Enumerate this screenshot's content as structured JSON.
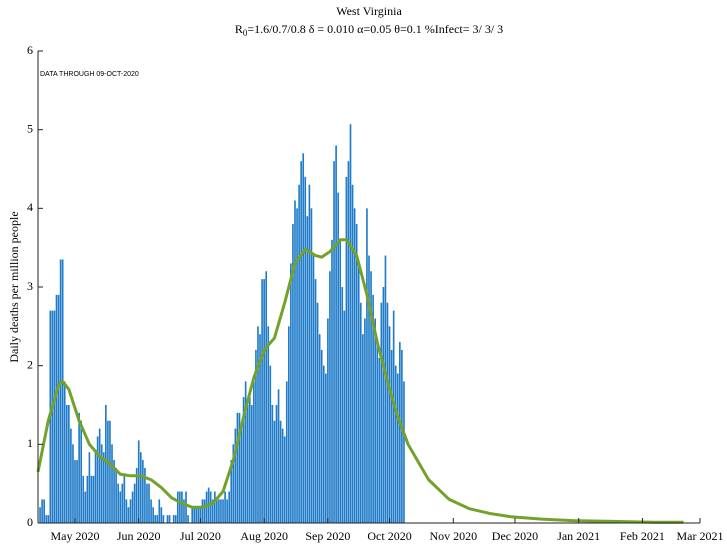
{
  "chart_data": {
    "type": "bar_line",
    "title": "West Virginia",
    "subtitle": [
      "R",
      "0",
      "=1.6/0.7/0.8  δ = 0.010  α=0.05  θ=0.1  %Infect= 3/ 3/ 3"
    ],
    "annotation": "DATA THROUGH 09-OCT-2020",
    "ylabel": "Daily deaths per million people",
    "xlim": [
      0,
      322
    ],
    "xticks": [
      {
        "value": 18,
        "label": "May 2020"
      },
      {
        "value": 49,
        "label": "Jun 2020"
      },
      {
        "value": 79,
        "label": "Jul 2020"
      },
      {
        "value": 110,
        "label": "Aug 2020"
      },
      {
        "value": 141,
        "label": "Sep 2020"
      },
      {
        "value": 171,
        "label": "Oct 2020"
      },
      {
        "value": 202,
        "label": "Nov 2020"
      },
      {
        "value": 232,
        "label": "Dec 2020"
      },
      {
        "value": 263,
        "label": "Jan 2021"
      },
      {
        "value": 294,
        "label": "Feb 2021"
      },
      {
        "value": 322,
        "label": "Mar 2021"
      }
    ],
    "ylim": [
      0,
      6
    ],
    "yticks": [
      0,
      1,
      2,
      3,
      4,
      5,
      6
    ],
    "bars": {
      "color": "#1f7bc8",
      "x": [
        1,
        2,
        3,
        4,
        5,
        6,
        7,
        8,
        9,
        10,
        11,
        12,
        13,
        14,
        15,
        16,
        17,
        18,
        19,
        20,
        21,
        22,
        23,
        24,
        25,
        26,
        27,
        28,
        29,
        30,
        31,
        32,
        33,
        34,
        35,
        36,
        37,
        38,
        39,
        40,
        41,
        42,
        43,
        44,
        45,
        46,
        47,
        48,
        49,
        50,
        51,
        52,
        53,
        54,
        55,
        56,
        57,
        58,
        59,
        60,
        61,
        62,
        63,
        64,
        65,
        66,
        67,
        68,
        69,
        70,
        71,
        72,
        73,
        74,
        75,
        76,
        77,
        78,
        79,
        80,
        81,
        82,
        83,
        84,
        85,
        86,
        87,
        88,
        89,
        90,
        91,
        92,
        93,
        94,
        95,
        96,
        97,
        98,
        99,
        100,
        101,
        102,
        103,
        104,
        105,
        106,
        107,
        108,
        109,
        110,
        111,
        112,
        113,
        114,
        115,
        116,
        117,
        118,
        119,
        120,
        121,
        122,
        123,
        124,
        125,
        126,
        127,
        128,
        129,
        130,
        131,
        132,
        133,
        134,
        135,
        136,
        137,
        138,
        139,
        140,
        141,
        142,
        143,
        144,
        145,
        146,
        147,
        148,
        149,
        150,
        151,
        152,
        153,
        154,
        155,
        156,
        157,
        158,
        159,
        160,
        161,
        162,
        163,
        164,
        165,
        166,
        167,
        168,
        169,
        170,
        171,
        172,
        173,
        174,
        175,
        176,
        177,
        178
      ],
      "values": [
        0.2,
        0.3,
        0.3,
        0.1,
        0.1,
        2.7,
        2.7,
        2.7,
        2.9,
        2.9,
        3.35,
        3.35,
        1.8,
        1.5,
        1.5,
        1.2,
        1.0,
        0.8,
        0.8,
        1.4,
        1.3,
        0.6,
        0.4,
        0.6,
        0.9,
        0.6,
        0.6,
        0.9,
        1.1,
        1.2,
        1.0,
        0.9,
        1.5,
        1.3,
        1.3,
        1.0,
        0.8,
        0.7,
        0.5,
        0.4,
        0.5,
        0.6,
        0.3,
        0.2,
        0.3,
        0.4,
        0.5,
        0.7,
        1.05,
        0.9,
        0.8,
        0.7,
        0.5,
        0.5,
        0.3,
        0.2,
        0.1,
        0.1,
        0.3,
        0.2,
        0.1,
        0.0,
        0.1,
        0.1,
        0.0,
        0.1,
        0.1,
        0.4,
        0.4,
        0.4,
        0.3,
        0.4,
        0.1,
        0.0,
        0.2,
        0.2,
        0.2,
        0.2,
        0.2,
        0.3,
        0.3,
        0.4,
        0.45,
        0.4,
        0.3,
        0.4,
        0.3,
        0.3,
        0.3,
        0.3,
        0.4,
        0.3,
        0.4,
        0.8,
        1.0,
        1.2,
        1.4,
        1.4,
        1.2,
        1.6,
        1.8,
        1.5,
        1.6,
        1.5,
        1.8,
        2.2,
        2.5,
        2.4,
        3.1,
        3.1,
        3.2,
        2.5,
        2.0,
        1.5,
        1.3,
        1.5,
        1.7,
        1.3,
        1.2,
        1.1,
        1.8,
        2.5,
        3.3,
        3.8,
        4.1,
        4.0,
        4.3,
        4.6,
        4.7,
        4.4,
        3.9,
        4.3,
        4.0,
        3.4,
        3.1,
        2.8,
        2.4,
        2.2,
        2.0,
        1.9,
        2.6,
        3.2,
        3.6,
        4.6,
        4.8,
        4.2,
        3.6,
        3.0,
        2.7,
        4.4,
        4.6,
        5.07,
        4.3,
        4.0,
        3.8,
        3.3,
        2.8,
        2.4,
        2.6,
        4.0,
        3.4,
        3.2,
        2.9,
        2.6,
        2.3,
        2.1,
        2.8,
        3.0,
        3.4,
        2.8,
        2.5,
        2.2,
        2.7,
        2.0,
        1.9,
        2.3,
        2.2,
        1.8
      ]
    },
    "line": {
      "color": "#73a22c",
      "x": [
        0,
        5,
        10,
        12,
        15,
        20,
        25,
        30,
        35,
        40,
        45,
        50,
        55,
        60,
        65,
        70,
        75,
        80,
        85,
        90,
        95,
        100,
        105,
        110,
        115,
        120,
        125,
        130,
        135,
        138,
        142,
        147,
        150,
        155,
        160,
        165,
        170,
        175,
        180,
        190,
        200,
        210,
        220,
        230,
        245,
        260,
        280,
        300,
        314
      ],
      "values": [
        0.65,
        1.3,
        1.75,
        1.8,
        1.7,
        1.3,
        1.0,
        0.85,
        0.75,
        0.62,
        0.6,
        0.6,
        0.55,
        0.45,
        0.32,
        0.25,
        0.2,
        0.2,
        0.25,
        0.4,
        0.8,
        1.35,
        1.85,
        2.2,
        2.35,
        2.8,
        3.3,
        3.48,
        3.4,
        3.38,
        3.45,
        3.6,
        3.6,
        3.4,
        2.9,
        2.3,
        1.8,
        1.35,
        1.0,
        0.55,
        0.3,
        0.18,
        0.12,
        0.08,
        0.05,
        0.03,
        0.02,
        0.01,
        0.01
      ]
    }
  }
}
